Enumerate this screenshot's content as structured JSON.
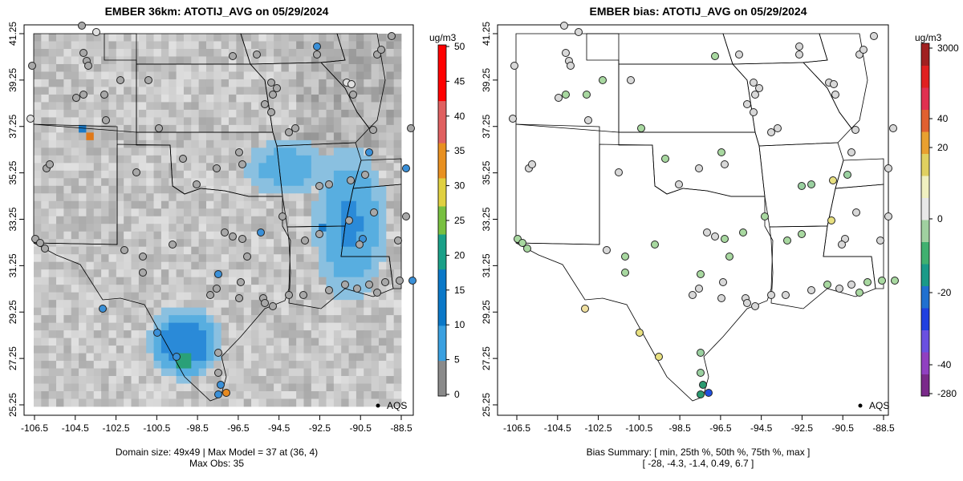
{
  "left_map": {
    "title": "EMBER 36km: ATOTIJ_AVG on 05/29/2024",
    "x_ticks": [
      "-106.5",
      "-104.5",
      "-102.5",
      "-100.5",
      "-98.5",
      "-96.5",
      "-94.5",
      "-92.5",
      "-90.5",
      "-88.5"
    ],
    "y_ticks": [
      "41.25",
      "39.25",
      "37.25",
      "35.25",
      "33.25",
      "31.25",
      "29.25",
      "27.25",
      "25.25"
    ],
    "colorbar_unit": "ug/m3",
    "colorbar_labels": [
      "50",
      "45",
      "40",
      "35",
      "30",
      "25",
      "20",
      "15",
      "10",
      "5",
      "0"
    ],
    "legend_label": "AQS",
    "footer_line1": "Domain size: 49x49 | Max Model = 37 at (36, 4)",
    "footer_line2": "Max Obs: 35"
  },
  "right_map": {
    "title": "EMBER bias: ATOTIJ_AVG on 05/29/2024",
    "x_ticks": [
      "-106.5",
      "-104.5",
      "-102.5",
      "-100.5",
      "-98.5",
      "-96.5",
      "-94.5",
      "-92.5",
      "-90.5",
      "-88.5"
    ],
    "y_ticks": [
      "41.25",
      "39.25",
      "37.25",
      "35.25",
      "33.25",
      "31.25",
      "29.25",
      "27.25",
      "25.25"
    ],
    "colorbar_unit": "ug/m3",
    "colorbar_labels": [
      "3000",
      "40",
      "20",
      "0",
      "-20",
      "-40",
      "-280"
    ],
    "legend_label": "AQS",
    "footer_line1": "Bias Summary: [ min, 25th %, 50th %, 75th %, max ]",
    "footer_line2": "[ -28,   -4.3,   -1.4,   0.49,   6.7 ]"
  },
  "colors": {
    "background": "#ffffff",
    "obs_high": "#2a7fd4",
    "model_low": "#cfcfcf",
    "model_high": "#3aa0e0"
  }
}
